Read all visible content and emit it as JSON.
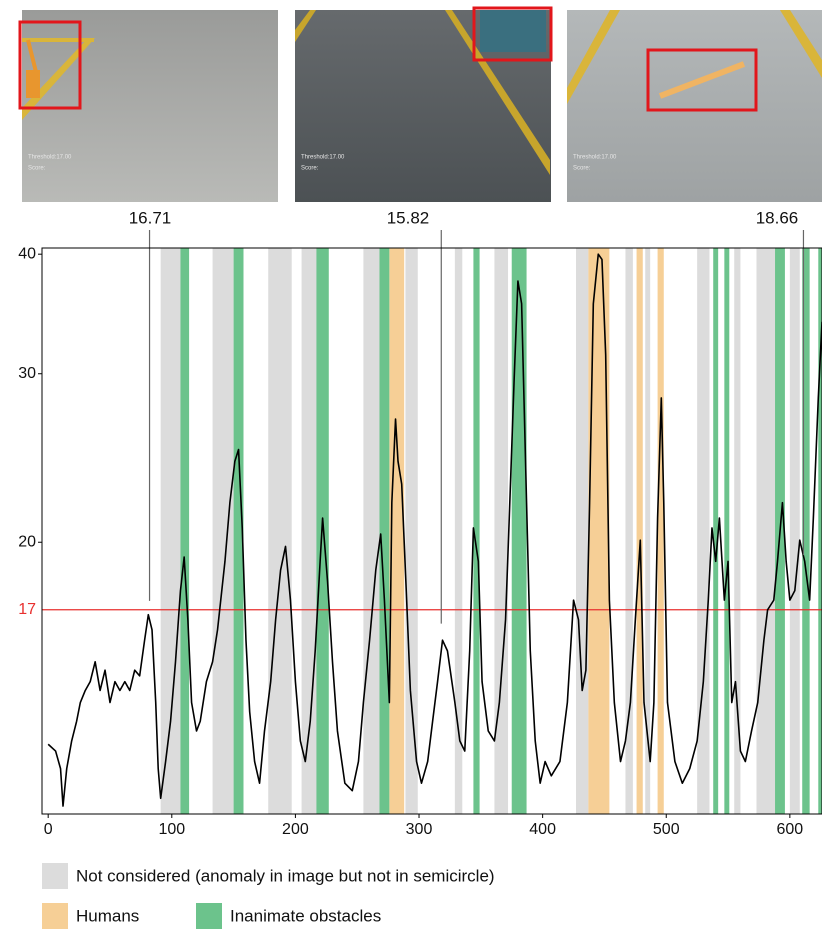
{
  "chart_data": {
    "type": "line",
    "yscale": "log",
    "color": "#000000",
    "x": [
      0,
      6,
      10,
      12,
      15,
      19,
      23,
      26,
      30,
      34,
      38,
      42,
      46,
      50,
      54,
      58,
      62,
      66,
      70,
      74,
      78,
      81,
      84,
      87,
      89,
      91,
      95,
      99,
      103,
      107,
      110,
      113,
      116,
      120,
      123,
      128,
      133,
      137,
      143,
      147,
      151,
      154,
      157,
      160,
      163,
      167,
      171,
      175,
      180,
      184,
      188,
      192,
      196,
      200,
      204,
      208,
      212,
      216,
      220,
      222,
      226,
      230,
      234,
      240,
      246,
      251,
      255,
      260,
      265,
      269,
      272,
      276,
      278,
      281,
      283,
      286,
      290,
      293,
      298,
      302,
      307,
      311,
      315,
      319,
      323,
      329,
      333,
      337,
      341,
      344,
      348,
      351,
      356,
      361,
      365,
      370,
      373,
      377,
      380,
      383,
      387,
      390,
      394,
      398,
      402,
      407,
      414,
      420,
      425,
      429,
      432,
      435,
      438,
      441,
      445,
      448,
      451,
      454,
      458,
      463,
      467,
      471,
      475,
      479,
      482,
      487,
      490,
      493,
      496,
      498,
      501,
      507,
      513,
      519,
      525,
      530,
      534,
      537,
      540,
      543,
      547,
      550,
      553,
      556,
      560,
      564,
      569,
      574,
      579,
      582,
      587,
      590,
      594,
      597,
      600,
      604,
      608,
      612,
      616,
      619,
      623,
      626
    ],
    "values": [
      12.3,
      12.1,
      11.6,
      10.6,
      11.6,
      12.4,
      13.0,
      13.6,
      14.0,
      14.3,
      15.0,
      14.0,
      14.7,
      13.6,
      14.3,
      14.0,
      14.3,
      14.0,
      14.7,
      14.5,
      15.8,
      16.8,
      16.2,
      13.6,
      11.6,
      10.8,
      11.8,
      13.0,
      15.0,
      17.8,
      19.3,
      16.6,
      13.6,
      12.7,
      13.0,
      14.3,
      15.0,
      16.2,
      19.1,
      22.0,
      24.3,
      25.0,
      20.7,
      15.8,
      13.3,
      11.8,
      11.2,
      12.7,
      14.3,
      16.6,
      18.7,
      19.8,
      17.4,
      14.3,
      12.4,
      11.8,
      13.0,
      15.4,
      19.1,
      21.2,
      18.2,
      15.0,
      12.7,
      11.2,
      11.0,
      11.8,
      13.6,
      15.8,
      18.7,
      20.4,
      17.4,
      13.6,
      22.0,
      26.9,
      24.3,
      23.0,
      17.4,
      14.0,
      11.8,
      11.2,
      11.8,
      13.0,
      14.3,
      15.8,
      15.4,
      13.6,
      12.4,
      12.1,
      15.4,
      20.7,
      19.1,
      14.3,
      12.7,
      12.4,
      13.6,
      16.6,
      21.2,
      29.7,
      37.5,
      35.5,
      22.0,
      15.4,
      12.4,
      11.2,
      11.8,
      11.4,
      11.8,
      13.6,
      17.4,
      16.6,
      14.0,
      14.7,
      22.0,
      35.5,
      40.0,
      39.5,
      31.4,
      17.4,
      13.6,
      11.8,
      12.4,
      13.6,
      16.6,
      20.1,
      13.6,
      11.8,
      13.6,
      21.2,
      28.3,
      22.0,
      13.6,
      11.8,
      11.2,
      11.6,
      12.4,
      14.3,
      17.4,
      20.7,
      19.1,
      21.2,
      17.4,
      19.1,
      13.6,
      14.3,
      12.1,
      11.8,
      12.7,
      13.6,
      15.8,
      17.0,
      17.4,
      19.1,
      22.0,
      19.1,
      17.4,
      17.8,
      20.1,
      19.1,
      17.4,
      21.2,
      28.3,
      34.0
    ],
    "xlim": [
      -5,
      626
    ],
    "xticks": [
      0,
      100,
      200,
      300,
      400,
      500,
      600
    ],
    "ylim": [
      10.4,
      40.6
    ],
    "yticks": [
      20,
      30,
      40
    ],
    "threshold": {
      "value": 17,
      "color": "#e8302f"
    },
    "bands": [
      {
        "name": "Not considered (anomaly in image but not in semicircle)",
        "color": "#dcdcdc",
        "ranges": [
          [
            91,
            107
          ],
          [
            133,
            150
          ],
          [
            178,
            197
          ],
          [
            205,
            218
          ],
          [
            255,
            268
          ],
          [
            289,
            299
          ],
          [
            329,
            335
          ],
          [
            361,
            372
          ],
          [
            427,
            437
          ],
          [
            467,
            473
          ],
          [
            483,
            487
          ],
          [
            525,
            535
          ],
          [
            555,
            560
          ],
          [
            573,
            588
          ],
          [
            600,
            608
          ]
        ]
      },
      {
        "name": "Humans",
        "color": "#f6cf96",
        "ranges": [
          [
            276,
            288
          ],
          [
            437,
            454
          ],
          [
            476,
            481
          ],
          [
            493,
            498
          ]
        ]
      },
      {
        "name": "Inanimate obstacles",
        "color": "#6cc38c",
        "ranges": [
          [
            107,
            114
          ],
          [
            150,
            158
          ],
          [
            217,
            227
          ],
          [
            268,
            276
          ],
          [
            344,
            349
          ],
          [
            375,
            387
          ],
          [
            538,
            542
          ],
          [
            547,
            551
          ],
          [
            588,
            596
          ],
          [
            610,
            616
          ],
          [
            623,
            626
          ]
        ]
      }
    ],
    "snapshots": [
      {
        "score": 16.71,
        "x": 82
      },
      {
        "score": 15.82,
        "x": 318
      },
      {
        "score": 18.66,
        "x": 611
      }
    ],
    "image_overlay": {
      "threshold": "Threshold:17.00",
      "score": "Score:"
    }
  }
}
